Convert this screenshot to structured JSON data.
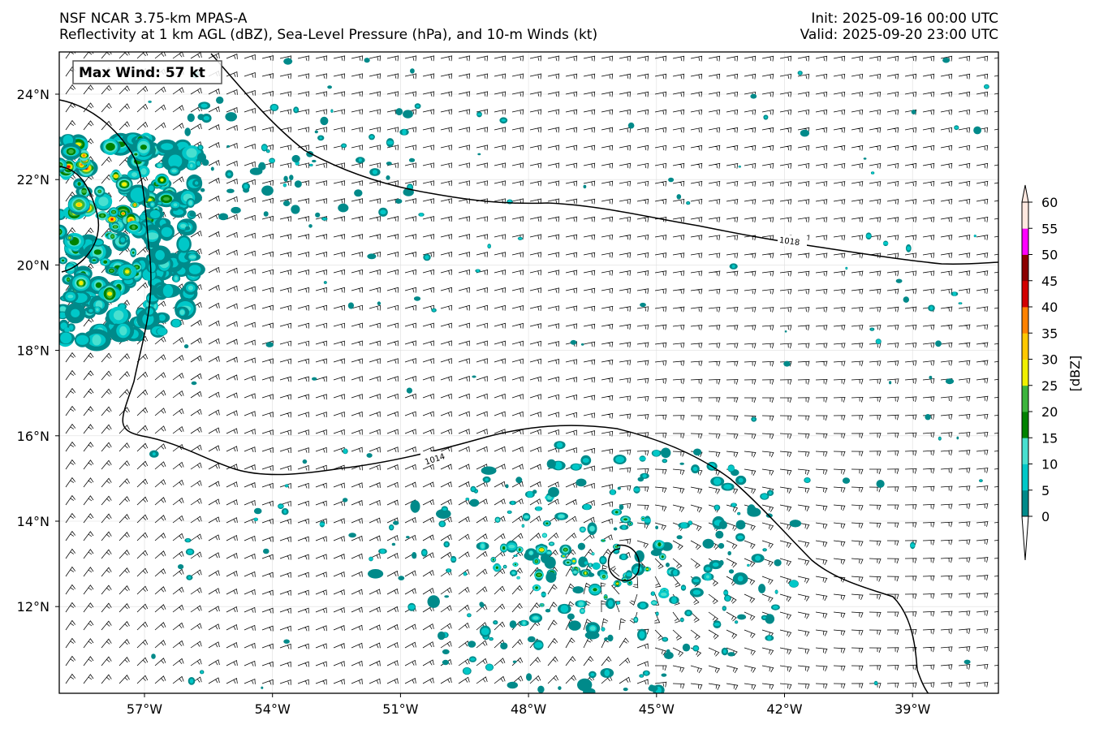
{
  "header": {
    "title_line1": "NSF NCAR 3.75-km MPAS-A",
    "title_line2": "Reflectivity at 1 km AGL (dBZ), Sea-Level Pressure (hPa), and 10-m Winds (kt)",
    "init": "Init: 2025-09-16 00:00 UTC",
    "valid": "Valid: 2025-09-20 23:00 UTC"
  },
  "annotation": {
    "max_wind": "Max Wind: 57 kt"
  },
  "axes": {
    "lon_labels": [
      "57°W",
      "54°W",
      "51°W",
      "48°W",
      "45°W",
      "42°W",
      "39°W"
    ],
    "lat_labels": [
      "24°N",
      "22°N",
      "20°N",
      "18°N",
      "16°N",
      "14°N",
      "12°N"
    ]
  },
  "isobars": [
    {
      "value": 1018,
      "label": "1018"
    },
    {
      "value": 1014,
      "label": "1014"
    }
  ],
  "colorbar": {
    "label": "[dBZ]",
    "ticks": [
      "0",
      "5",
      "10",
      "15",
      "20",
      "25",
      "30",
      "35",
      "40",
      "45",
      "50",
      "55",
      "60"
    ],
    "colors": [
      "#008a8a",
      "#00c8c8",
      "#48e0d0",
      "#008200",
      "#3cb43c",
      "#f0f000",
      "#ffc800",
      "#ff8200",
      "#d20000",
      "#8c0000",
      "#ff00ff",
      "#ffe8e0"
    ]
  },
  "colors": {
    "isobar": "#000000",
    "wind_barb": "#000000",
    "gridline": "#dddddd"
  }
}
